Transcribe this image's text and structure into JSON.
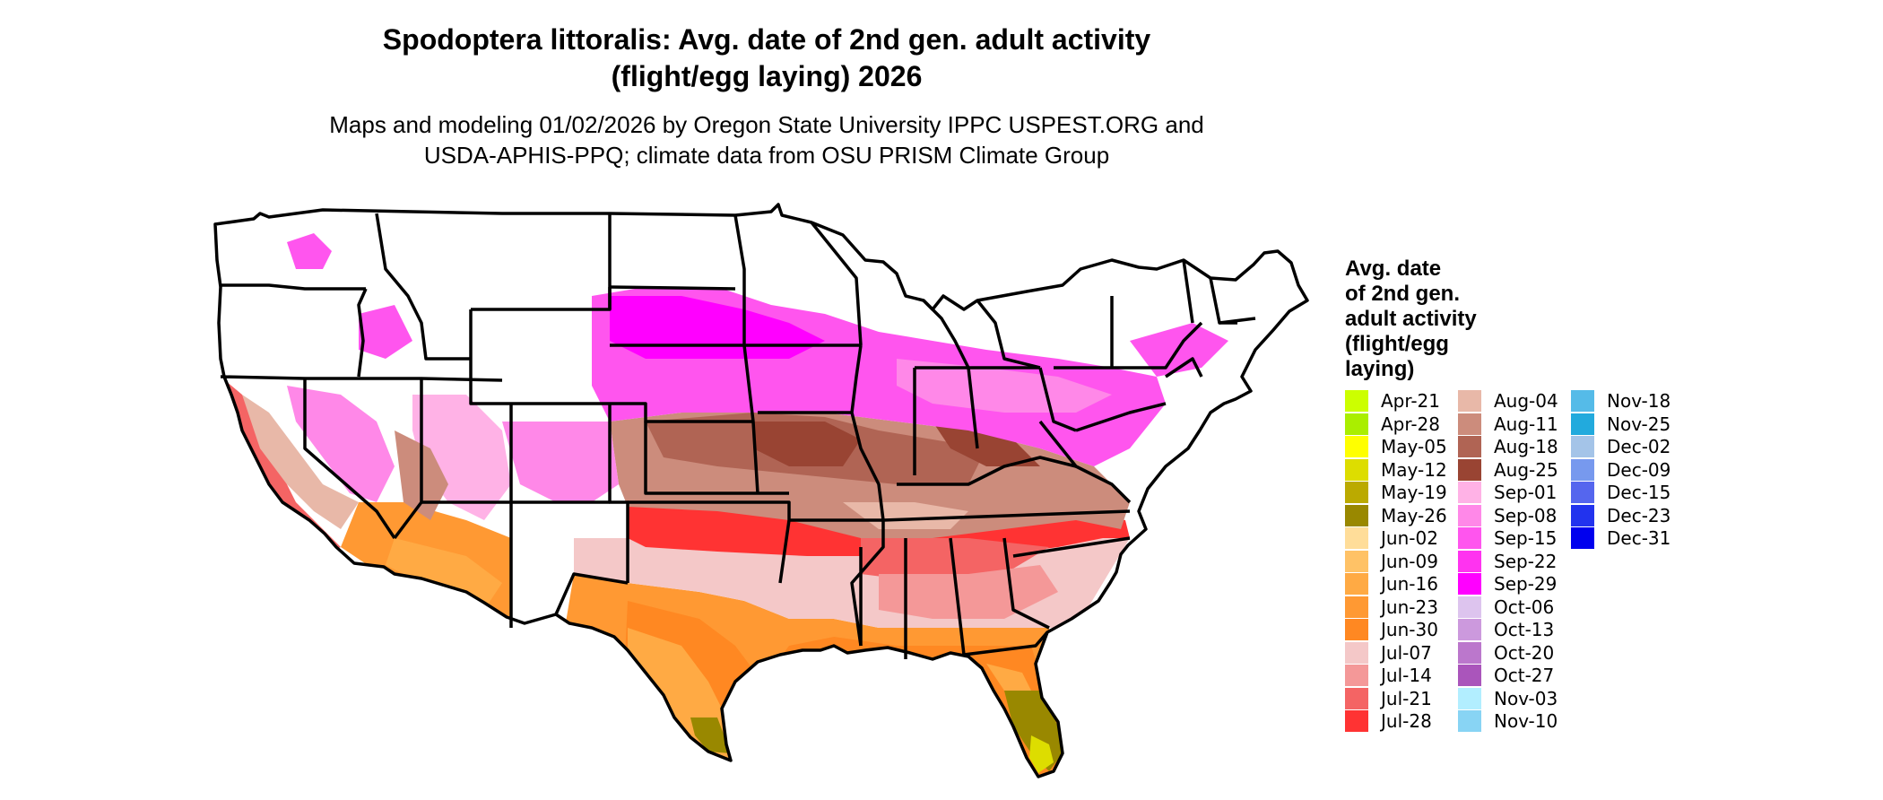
{
  "title_lines": [
    "Spodoptera littoralis: Avg. date of 2nd gen. adult activity",
    "(flight/egg laying) 2026"
  ],
  "subtitle_lines": [
    "Maps and modeling 01/02/2026 by Oregon State University IPPC USPEST.ORG and",
    "USDA-APHIS-PPQ; climate data from OSU PRISM Climate Group"
  ],
  "legend": {
    "title_lines": [
      "Avg. date",
      "of 2nd gen.",
      "adult activity",
      "(flight/egg",
      "laying)"
    ],
    "items": [
      {
        "label": "Apr-21",
        "color": "#ccff00"
      },
      {
        "label": "Apr-28",
        "color": "#aaee00"
      },
      {
        "label": "May-05",
        "color": "#ffff00"
      },
      {
        "label": "May-12",
        "color": "#dddd00"
      },
      {
        "label": "May-19",
        "color": "#bbaa00"
      },
      {
        "label": "May-26",
        "color": "#998800"
      },
      {
        "label": "Jun-02",
        "color": "#ffdd99"
      },
      {
        "label": "Jun-09",
        "color": "#ffc266"
      },
      {
        "label": "Jun-16",
        "color": "#ffaa44"
      },
      {
        "label": "Jun-23",
        "color": "#ff9933"
      },
      {
        "label": "Jun-30",
        "color": "#ff8822"
      },
      {
        "label": "Jul-07",
        "color": "#f4c8c8"
      },
      {
        "label": "Jul-14",
        "color": "#f49898"
      },
      {
        "label": "Jul-21",
        "color": "#f46464"
      },
      {
        "label": "Jul-28",
        "color": "#ff3333"
      },
      {
        "label": "Aug-04",
        "color": "#e8b8a8"
      },
      {
        "label": "Aug-11",
        "color": "#cc8c7c"
      },
      {
        "label": "Aug-18",
        "color": "#b06454"
      },
      {
        "label": "Aug-25",
        "color": "#994433"
      },
      {
        "label": "Sep-01",
        "color": "#ffb2e6"
      },
      {
        "label": "Sep-08",
        "color": "#ff88e8"
      },
      {
        "label": "Sep-15",
        "color": "#ff55ee"
      },
      {
        "label": "Sep-22",
        "color": "#ff33f0"
      },
      {
        "label": "Sep-29",
        "color": "#ff00ff"
      },
      {
        "label": "Oct-06",
        "color": "#ddc4ee"
      },
      {
        "label": "Oct-13",
        "color": "#cc99dd"
      },
      {
        "label": "Oct-20",
        "color": "#bb77cc"
      },
      {
        "label": "Oct-27",
        "color": "#aa55bb"
      },
      {
        "label": "Nov-03",
        "color": "#b2eeff"
      },
      {
        "label": "Nov-10",
        "color": "#88d4f4"
      },
      {
        "label": "Nov-18",
        "color": "#55bbe8"
      },
      {
        "label": "Nov-25",
        "color": "#22aadd"
      },
      {
        "label": "Dec-02",
        "color": "#a4c4e8"
      },
      {
        "label": "Dec-09",
        "color": "#7799ee"
      },
      {
        "label": "Dec-15",
        "color": "#5566ee"
      },
      {
        "label": "Dec-23",
        "color": "#2233ee"
      },
      {
        "label": "Dec-31",
        "color": "#0000ee"
      }
    ]
  },
  "map": {
    "border_color": "#000000",
    "background_color": "#ffffff"
  }
}
